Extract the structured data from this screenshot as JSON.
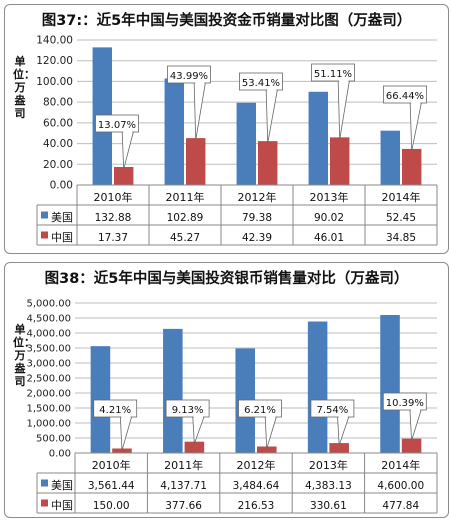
{
  "chart_data": [
    {
      "type": "bar",
      "title": "图37:：近5年中国与美国投资金币销量对比图（万盎司）",
      "ylabel": "单位：万盎司",
      "categories": [
        "2010年",
        "2011年",
        "2012年",
        "2013年",
        "2014年"
      ],
      "ylim": [
        0,
        140
      ],
      "yticks": [
        "0.00",
        "20.00",
        "40.00",
        "60.00",
        "80.00",
        "100.00",
        "120.00",
        "140.00"
      ],
      "grid": true,
      "legend": "bottom-table",
      "series": [
        {
          "name": "美国",
          "color": "#4a7ebb",
          "values": [
            132.88,
            102.89,
            79.38,
            90.02,
            52.45
          ],
          "labels": [
            "132.88",
            "102.89",
            "79.38",
            "90.02",
            "52.45"
          ]
        },
        {
          "name": "中国",
          "color": "#be4b48",
          "values": [
            17.37,
            45.27,
            42.39,
            46.01,
            34.85
          ],
          "labels": [
            "17.37",
            "45.27",
            "42.39",
            "46.01",
            "34.85"
          ]
        }
      ],
      "annotations": [
        "13.07%",
        "43.99%",
        "53.41%",
        "51.11%",
        "66.44%"
      ]
    },
    {
      "type": "bar",
      "title": "图38：近5年中国与美国投资银币销售量对比（万盎司）",
      "ylabel": "单位：万盎司",
      "categories": [
        "2010年",
        "2011年",
        "2012年",
        "2013年",
        "2014年"
      ],
      "ylim": [
        0,
        5000
      ],
      "yticks": [
        "0.00",
        "500.00",
        "1,000.00",
        "1,500.00",
        "2,000.00",
        "2,500.00",
        "3,000.00",
        "3,500.00",
        "4,000.00",
        "4,500.00",
        "5,000.00"
      ],
      "grid": true,
      "legend": "bottom-table",
      "series": [
        {
          "name": "美国",
          "color": "#4a7ebb",
          "values": [
            3561.44,
            4137.71,
            3484.64,
            4383.13,
            4600.0
          ],
          "labels": [
            "3,561.44",
            "4,137.71",
            "3,484.64",
            "4,383.13",
            "4,600.00"
          ]
        },
        {
          "name": "中国",
          "color": "#be4b48",
          "values": [
            150.0,
            377.66,
            216.53,
            330.61,
            477.84
          ],
          "labels": [
            "150.00",
            "377.66",
            "216.53",
            "330.61",
            "477.84"
          ]
        }
      ],
      "annotations": [
        "4.21%",
        "9.13%",
        "6.21%",
        "7.54%",
        "10.39%"
      ]
    }
  ]
}
